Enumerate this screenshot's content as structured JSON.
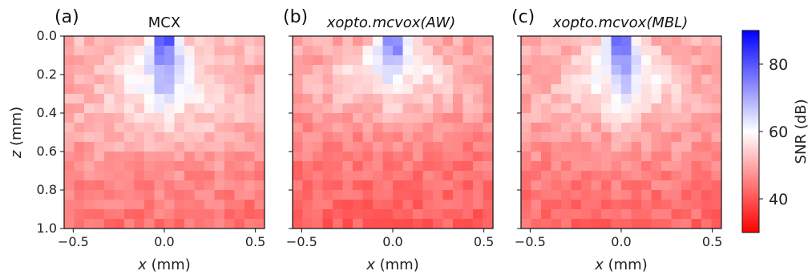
{
  "chart_data": {
    "type": "heatmap",
    "colormap": "bwr_r",
    "grid": false,
    "colorbar": {
      "label": "SNR (dB)",
      "range": [
        30,
        90
      ],
      "ticks": [
        40,
        60,
        80
      ],
      "tick_labels": [
        "40",
        "60",
        "80"
      ],
      "color_low": "#ff0000",
      "color_mid": "#ffffff",
      "color_high": "#0000ff"
    },
    "shared": {
      "xlabel_var": "x",
      "xlabel_unit": " (mm)",
      "ylabel_var": "z",
      "ylabel_unit": " (mm)",
      "xlim": [
        -0.55,
        0.55
      ],
      "ylim": [
        1.0,
        0.0
      ],
      "xticks": [
        -0.5,
        0.0,
        0.5
      ],
      "xtick_labels": [
        "−0.5",
        "0.0",
        "0.5"
      ],
      "yticks": [
        0.0,
        0.2,
        0.4,
        0.6,
        0.8,
        1.0
      ],
      "ytick_labels": [
        "0.0",
        "0.2",
        "0.4",
        "0.6",
        "0.8",
        "1.0"
      ],
      "grid_nx": 20,
      "grid_nz": 20
    },
    "panels": [
      {
        "label": "(a)",
        "title_main": "MCX",
        "title_args": "",
        "snr_peak": 88,
        "snr_surface": 52,
        "snr_deep": 43,
        "plume_depth": 0.55
      },
      {
        "label": "(b)",
        "title_main": "xopto.mcvox",
        "title_args": "(AW)",
        "snr_peak": 82,
        "snr_surface": 50,
        "snr_deep": 41,
        "plume_depth": 0.4
      },
      {
        "label": "(c)",
        "title_main": "xopto.mcvox",
        "title_args": "(MBL)",
        "snr_peak": 89,
        "snr_surface": 51,
        "snr_deep": 42,
        "plume_depth": 0.5
      }
    ]
  }
}
